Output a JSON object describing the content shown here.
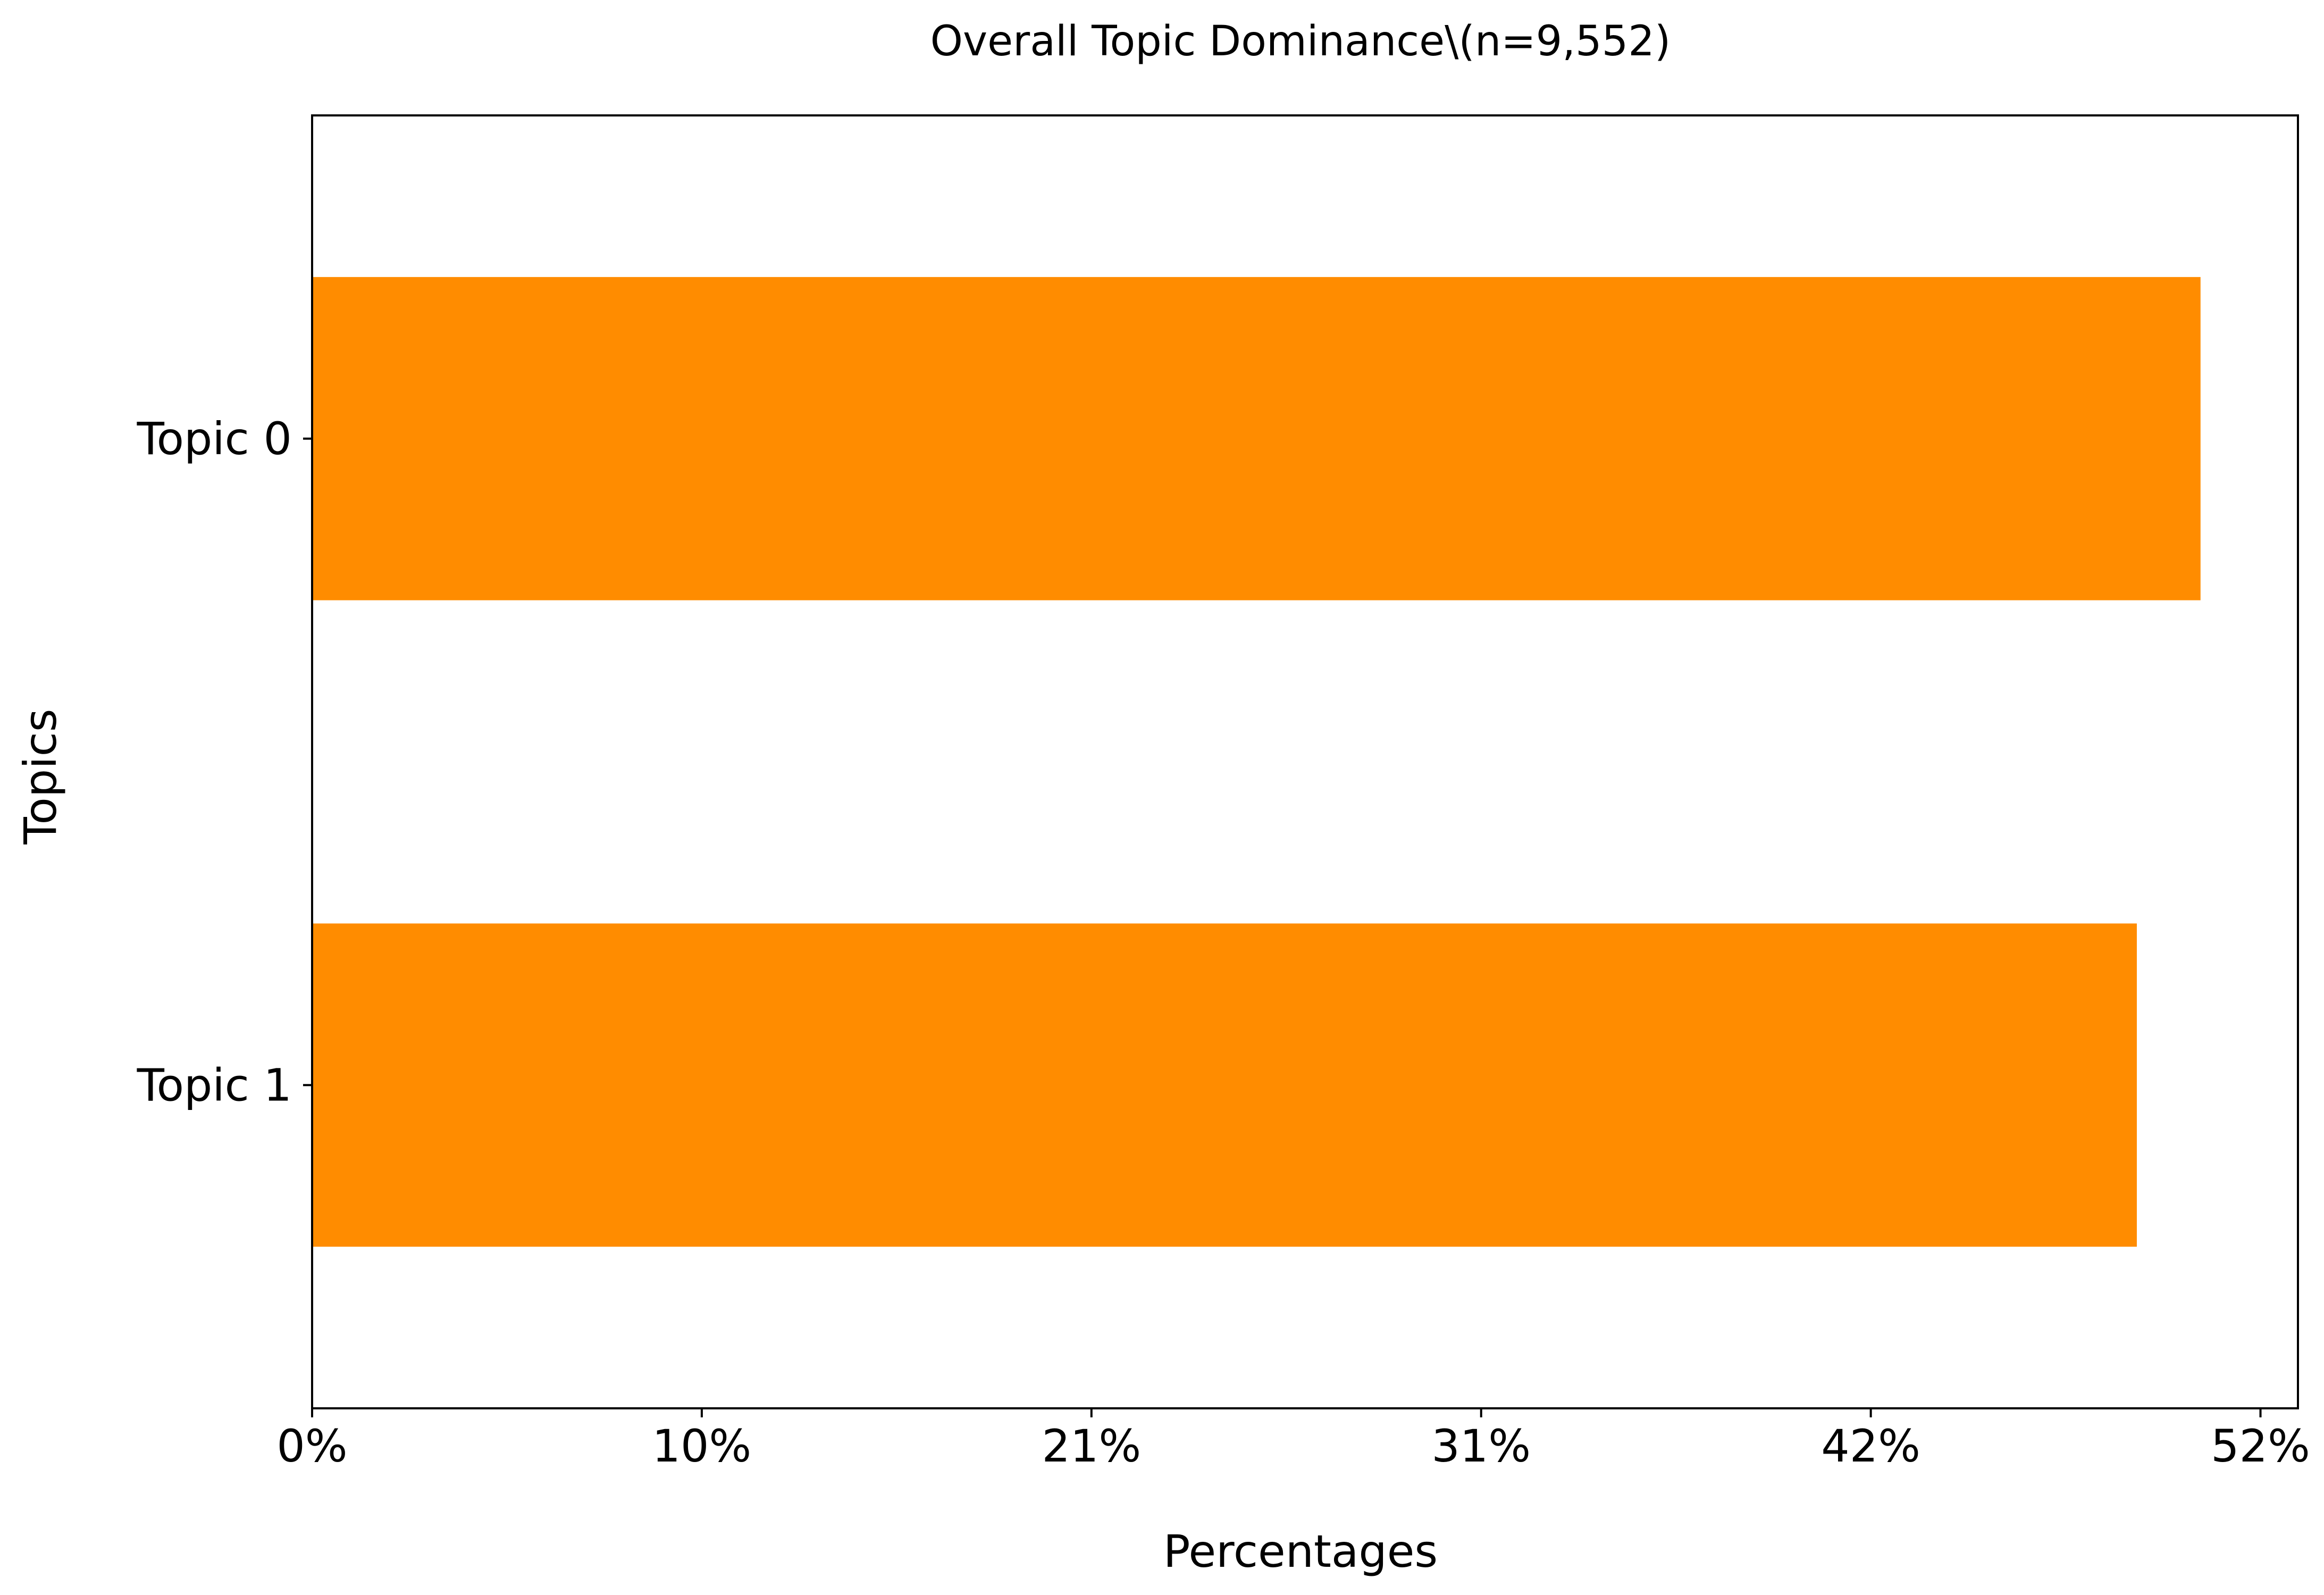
{
  "chart_data": {
    "type": "bar",
    "orientation": "horizontal",
    "title": "Overall Topic Dominance\\(n=9,552)",
    "xlabel": "Percentages",
    "ylabel": "Topics",
    "categories": [
      "Topic 0",
      "Topic 1"
    ],
    "values": [
      50.4,
      48.7
    ],
    "xlim": [
      0,
      53
    ],
    "xticks": [
      0,
      10.4,
      20.8,
      31.2,
      41.6,
      52
    ],
    "xtick_labels": [
      "0%",
      "10%",
      "21%",
      "31%",
      "42%",
      "52%"
    ],
    "grid": false,
    "bar_color": "#ff8c00"
  }
}
